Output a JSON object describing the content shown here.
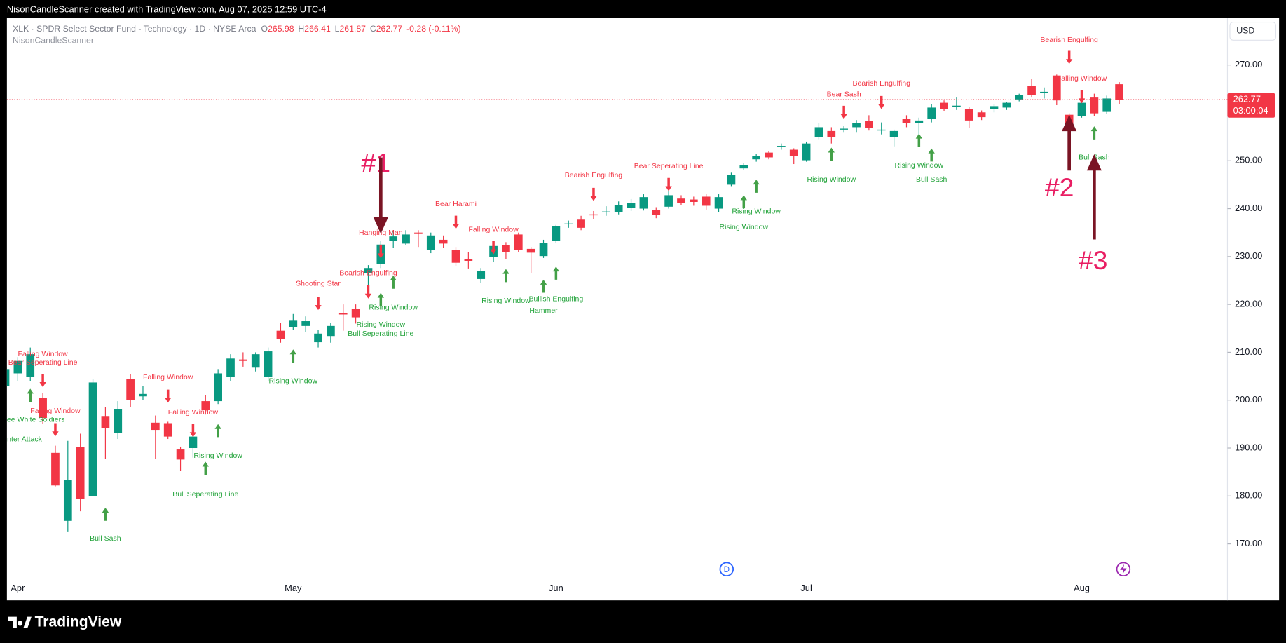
{
  "header": {
    "caption": "NisonCandleScanner created with TradingView.com, Aug 07, 2025 12:59 UTC-4"
  },
  "legend": {
    "symbol": "XLK · SPDR Select Sector Fund - Technology · 1D · NYSE Arca",
    "open_label": "O",
    "open": 265.98,
    "high_label": "H",
    "high": 266.41,
    "low_label": "L",
    "low": 261.87,
    "close_label": "C",
    "close": 262.77,
    "change": "-0.28 (-0.11%)",
    "indicator": "NisonCandleScanner"
  },
  "currency": "USD",
  "countdown": "03:00:04",
  "footer": {
    "brand": "TradingView"
  },
  "chart_data": {
    "type": "candlestick",
    "up_color": "#089981",
    "down_color": "#f23645",
    "grid": false,
    "categories": [
      null,
      "Apr",
      null,
      null,
      null,
      null,
      null,
      null,
      null,
      null,
      null,
      null,
      null,
      null,
      null,
      null,
      null,
      null,
      null,
      null,
      null,
      null,
      null,
      "May",
      null,
      null,
      null,
      null,
      null,
      null,
      null,
      null,
      null,
      null,
      null,
      null,
      null,
      null,
      null,
      null,
      null,
      null,
      null,
      null,
      "Jun",
      null,
      null,
      null,
      null,
      null,
      null,
      null,
      null,
      null,
      null,
      null,
      null,
      null,
      null,
      null,
      null,
      null,
      null,
      null,
      "Jul",
      null,
      null,
      null,
      null,
      null,
      null,
      null,
      null,
      null,
      null,
      null,
      null,
      null,
      null,
      null,
      null,
      null,
      null,
      null,
      null,
      null,
      "Aug",
      null,
      null,
      null
    ],
    "open": [
      203,
      205.6,
      204.8,
      200.4,
      189,
      174.8,
      190.2,
      180,
      196.7,
      193.1,
      204.4,
      200.8,
      195.3,
      195.2,
      189.7,
      190,
      199.8,
      199.8,
      204.8,
      208.5,
      206.8,
      204.8,
      214.5,
      215.3,
      215.5,
      212.1,
      213.4,
      218.2,
      219,
      226.5,
      228.4,
      233.2,
      232.7,
      235,
      231.3,
      233.5,
      231.3,
      229.4,
      225.3,
      229.9,
      232.4,
      234.6,
      231.6,
      230.1,
      233.2,
      236.8,
      237.7,
      238.8,
      239.2,
      239.3,
      240.2,
      240,
      239.7,
      240.4,
      242.1,
      241.9,
      242.5,
      240,
      245,
      248.4,
      250.3,
      251.7,
      252.9,
      252.3,
      250.1,
      254.9,
      256.2,
      256.5,
      257,
      258.3,
      256.3,
      254.9,
      258.7,
      257.8,
      258.7,
      262.1,
      261.3,
      260.8,
      260.1,
      260.8,
      261.1,
      262.8,
      265.7,
      264.2,
      267.8,
      259.6,
      259.4,
      263.2,
      260.2,
      265.98
    ],
    "high": [
      208,
      209,
      211,
      201.5,
      190.5,
      191.5,
      193,
      204.5,
      198.5,
      199.8,
      205.5,
      202.9,
      196.8,
      195.5,
      190.3,
      193.3,
      201,
      206.5,
      209.6,
      210,
      210,
      211,
      216.2,
      218,
      217.5,
      214.7,
      216.2,
      220,
      220,
      228.2,
      233.3,
      235.5,
      235.5,
      235.5,
      235,
      234.4,
      232,
      231,
      227.6,
      232.7,
      233,
      235,
      232,
      233.5,
      236.6,
      237.5,
      238.5,
      239.5,
      240.5,
      241.5,
      242,
      243,
      240.3,
      243.8,
      242.8,
      242.5,
      243,
      243,
      247.5,
      249.5,
      251.4,
      252,
      253.6,
      252.6,
      254,
      257.8,
      257,
      257.2,
      258.5,
      259.5,
      258,
      256.5,
      259.5,
      259,
      261.8,
      262.6,
      263.2,
      261.2,
      260.5,
      261.9,
      262.3,
      264,
      267.1,
      265.3,
      268,
      259.9,
      263,
      264,
      263.6,
      266.41
    ],
    "low": [
      202,
      204,
      204,
      195,
      182,
      172.6,
      176.8,
      180,
      187.7,
      191.9,
      198.5,
      200,
      187.7,
      191.9,
      185.2,
      188,
      197,
      199.2,
      204,
      207,
      206,
      204,
      212,
      214.7,
      214.2,
      211,
      212,
      214.5,
      216,
      222,
      227.6,
      231.8,
      232.4,
      232,
      230.7,
      231.8,
      228,
      227.5,
      224.5,
      228.8,
      229.5,
      231,
      226.5,
      229.7,
      232.9,
      236,
      235.5,
      237.8,
      238.5,
      238.8,
      239.5,
      239.6,
      238,
      240,
      240.8,
      240.6,
      239.8,
      239.3,
      244.7,
      248,
      249.8,
      250.3,
      252.3,
      249.3,
      249.8,
      254.5,
      253.6,
      256,
      256,
      256.3,
      255.5,
      253,
      257,
      254.8,
      258,
      260.4,
      260.6,
      256.8,
      258.5,
      260.1,
      260.6,
      262.4,
      263.2,
      263,
      261.6,
      255,
      259,
      259.4,
      259.8,
      261.87
    ],
    "close": [
      206.5,
      208.2,
      209.6,
      196.3,
      182.2,
      183.4,
      179.4,
      203.7,
      194.1,
      198.2,
      200,
      201.3,
      193.8,
      192.4,
      187.6,
      192.4,
      197.9,
      205.6,
      208.7,
      208.2,
      209.6,
      210.2,
      212.8,
      216.6,
      216.5,
      213.9,
      215.5,
      217.9,
      217.3,
      227.6,
      232.5,
      234.2,
      234.6,
      234.7,
      234.4,
      232.7,
      228.7,
      229.1,
      227,
      232.2,
      231,
      231.3,
      230.8,
      232.8,
      236.3,
      236.9,
      236,
      238.6,
      239.4,
      240.7,
      241.2,
      242.4,
      238.7,
      242.8,
      241.2,
      241.4,
      240.6,
      242.4,
      247.1,
      249.1,
      251,
      250.7,
      253.1,
      251,
      253.6,
      257,
      254.9,
      256.7,
      257.8,
      256.8,
      256.5,
      256.2,
      257.8,
      258.4,
      261.1,
      260.8,
      261.5,
      258.4,
      259.1,
      261.4,
      262.1,
      263.8,
      263.8,
      264.4,
      262.6,
      256.6,
      262.1,
      259.9,
      263,
      262.77
    ],
    "ylim": [
      158.2,
      279.8
    ],
    "yticks": [
      {
        "value": 170,
        "label": "170.00"
      },
      {
        "value": 180,
        "label": "180.00"
      },
      {
        "value": 190,
        "label": "190.00"
      },
      {
        "value": 200,
        "label": "200.00"
      },
      {
        "value": 210,
        "label": "210.00"
      },
      {
        "value": 220,
        "label": "220.00"
      },
      {
        "value": 230,
        "label": "230.00"
      },
      {
        "value": 240,
        "label": "240.00"
      },
      {
        "value": 250,
        "label": "250.00"
      },
      {
        "value": 260,
        "label": "260.00"
      },
      {
        "value": 270,
        "label": "270.00"
      }
    ],
    "bearish_patterns": [
      "Falling Window",
      "Bear Seperating Line",
      "Falling Window",
      "Falling Window",
      "Falling Window",
      "Shooting Star",
      "Bearish Engulfing",
      "Hanging Man",
      "Bear Harami",
      "Falling Window",
      "Bearish Engulfing",
      "Bear Seperating Line",
      "Bear Sash",
      "Bearish Engulfing",
      "Bearish Engulfing",
      "Falling Window"
    ],
    "bullish_patterns": [
      "Three White Soldiers",
      "Counter Attack",
      "Bull Sash",
      "Rising Window",
      "Bull Seperating Line",
      "Rising Window",
      "Rising Window",
      "Bull Seperating Line",
      "Rising Window",
      "Rising Window",
      "Hammer",
      "Bullish Engulfing",
      "Rising Window",
      "Rising Window",
      "Rising Window",
      "Rising Window",
      "Bull Sash",
      "Bull Sash"
    ],
    "callouts": [
      "#1",
      "#2",
      "#3"
    ]
  }
}
